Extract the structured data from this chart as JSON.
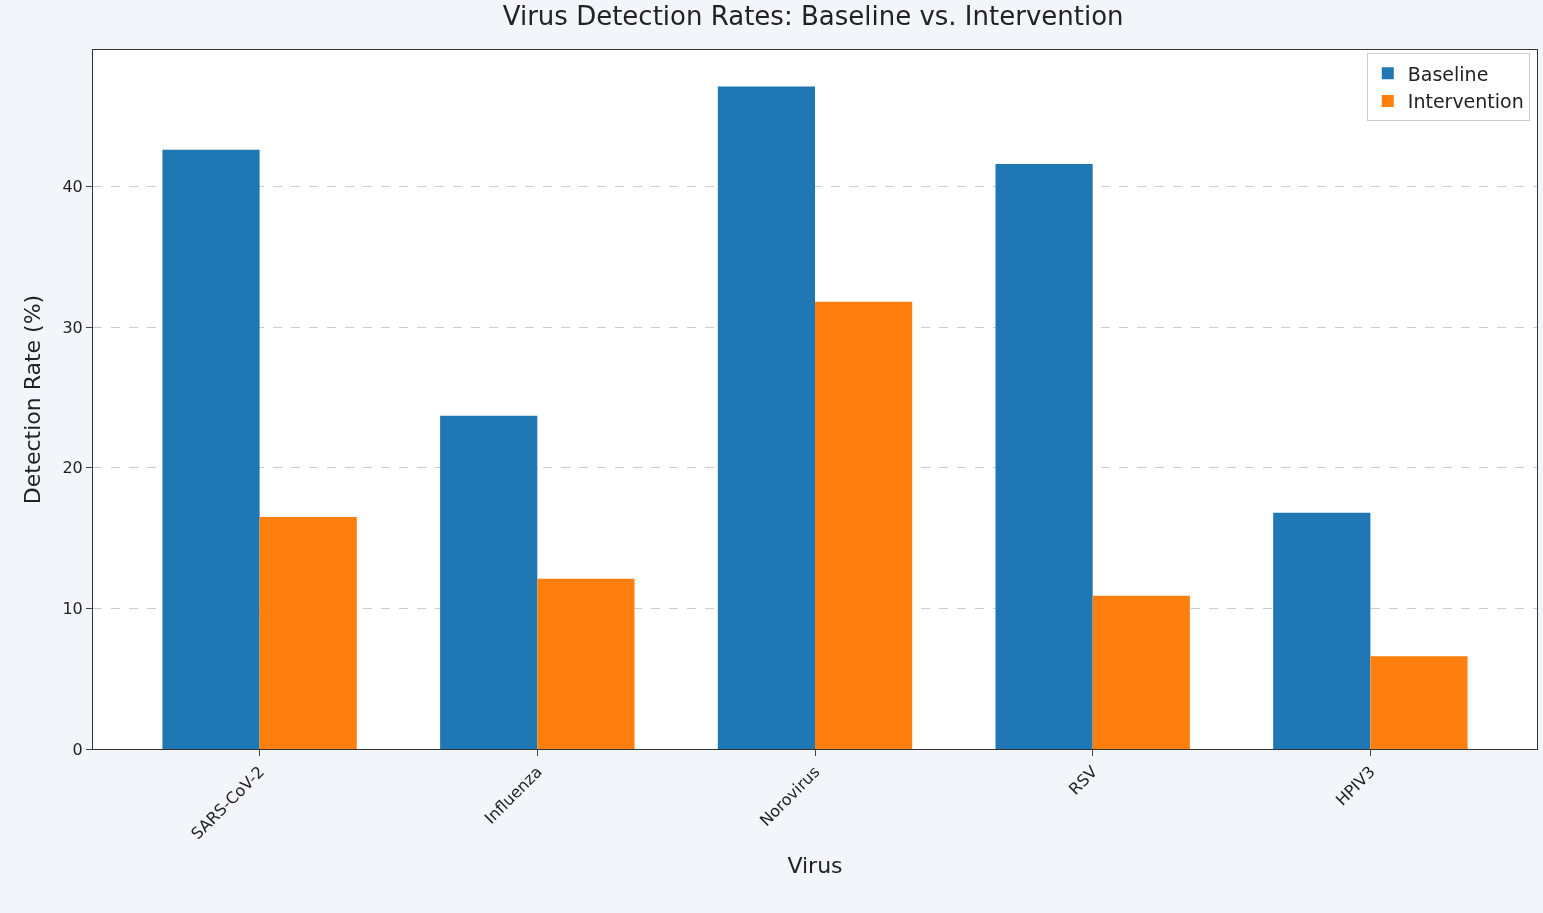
{
  "chart_data": {
    "type": "bar",
    "title": "Virus Detection Rates: Baseline vs. Intervention",
    "xlabel": "Virus",
    "ylabel": "Detection Rate (%)",
    "categories": [
      "SARS-CoV-2",
      "Influenza",
      "Norovirus",
      "RSV",
      "HPIV3"
    ],
    "series": [
      {
        "name": "Baseline",
        "color": "#1f77b4",
        "values": [
          42.6,
          23.7,
          47.1,
          41.6,
          16.8
        ]
      },
      {
        "name": "Intervention",
        "color": "#ff7f0e",
        "values": [
          16.5,
          12.1,
          31.8,
          10.9,
          6.6
        ]
      }
    ],
    "ylim": [
      0,
      49.7
    ],
    "yticks": [
      0,
      10,
      20,
      30,
      40
    ],
    "grid": "y",
    "legend": "top right"
  }
}
